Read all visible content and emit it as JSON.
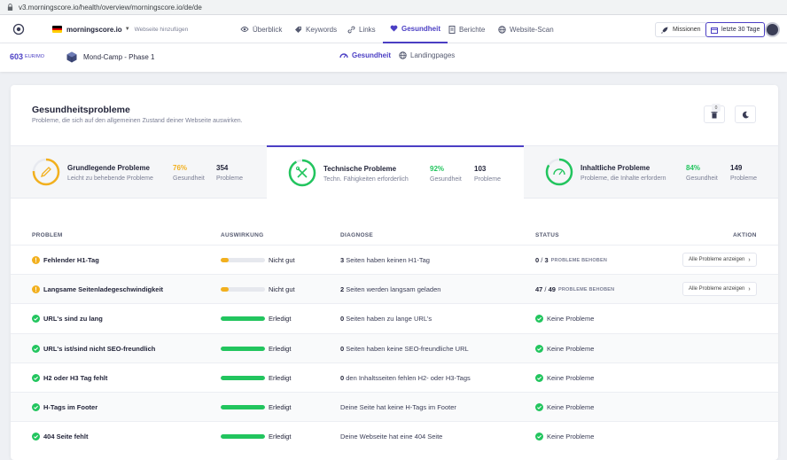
{
  "browser": {
    "url": "v3.morningscore.io/health/overview/morningscore.io/de/de"
  },
  "topnav": {
    "site_name": "morningscore.io",
    "add_site": "Webseite hinzufügen",
    "items": [
      {
        "label": "Überblick",
        "icon": "eye-icon"
      },
      {
        "label": "Keywords",
        "icon": "tag-icon"
      },
      {
        "label": "Links",
        "icon": "link-icon"
      },
      {
        "label": "Gesundheit",
        "icon": "heart-icon"
      },
      {
        "label": "Berichte",
        "icon": "report-icon"
      },
      {
        "label": "Website-Scan",
        "icon": "globe-icon"
      }
    ],
    "missions": "Missionen",
    "date_range": "letzte 30 Tage"
  },
  "subnav": {
    "score_value": "603",
    "score_unit": "EUR/MO",
    "project": "Mond-Camp - Phase 1",
    "items": [
      {
        "label": "Gesundheit",
        "icon": "gauge-icon"
      },
      {
        "label": "Landingpages",
        "icon": "globe-icon"
      }
    ]
  },
  "header": {
    "title": "Gesundheitsprobleme",
    "subtitle": "Probleme, die sich auf den allgemeinen Zustand deiner Webseite auswirken.",
    "trash_badge": "0"
  },
  "categories": [
    {
      "title": "Grundlegende Probleme",
      "desc": "Leicht zu behebende Probleme",
      "pct": "76%",
      "pct_label": "Gesundheit",
      "count": "354",
      "count_label": "Probleme",
      "color": "#f2b01e",
      "level": 0.76
    },
    {
      "title": "Technische Probleme",
      "desc": "Techn. Fähigkeiten erforderlich",
      "pct": "92%",
      "pct_label": "Gesundheit",
      "count": "103",
      "count_label": "Probleme",
      "color": "#22c55e",
      "level": 0.92
    },
    {
      "title": "Inhaltliche Probleme",
      "desc": "Probleme, die Inhalte erfordern",
      "pct": "84%",
      "pct_label": "Gesundheit",
      "count": "149",
      "count_label": "Probleme",
      "color": "#22c55e",
      "level": 0.84
    }
  ],
  "table": {
    "headers": {
      "problem": "PROBLEM",
      "impact": "AUSWIRKUNG",
      "diagnosis": "DIAGNOSE",
      "status": "STATUS",
      "action": "AKTION"
    },
    "rows": [
      {
        "name": "Fehlender H1-Tag",
        "state": "warning",
        "impact": "Nicht gut",
        "progress": 0.18,
        "diag_num": "3",
        "diag_text": " Seiten haben keinen H1-Tag",
        "status_a": "0",
        "status_b": "3",
        "status_suffix": "PROBLEME BEHOBEN",
        "action": "Alle Probleme anzeigen"
      },
      {
        "name": "Langsame Seitenladegeschwindigkeit",
        "state": "warning",
        "impact": "Nicht gut",
        "progress": 0.18,
        "diag_num": "2",
        "diag_text": " Seiten werden langsam geladen",
        "status_a": "47",
        "status_b": "49",
        "status_suffix": "PROBLEME BEHOBEN",
        "action": "Alle Probleme anzeigen"
      },
      {
        "name": "URL's sind zu lang",
        "state": "ok",
        "impact": "Erledigt",
        "progress": 1,
        "diag_num": "0",
        "diag_text": " Seiten haben zu lange URL's",
        "status_ok": "Keine Probleme"
      },
      {
        "name": "URL's ist/sind nicht SEO-freundlich",
        "state": "ok",
        "impact": "Erledigt",
        "progress": 1,
        "diag_num": "0",
        "diag_text": " Seiten haben keine SEO-freundliche URL",
        "status_ok": "Keine Probleme"
      },
      {
        "name": "H2 oder H3 Tag fehlt",
        "state": "ok",
        "impact": "Erledigt",
        "progress": 1,
        "diag_num": "0",
        "diag_text": " den Inhaltsseiten fehlen H2- oder H3-Tags",
        "status_ok": "Keine Probleme"
      },
      {
        "name": "H-Tags im Footer",
        "state": "ok",
        "impact": "Erledigt",
        "progress": 1,
        "diag_num": "",
        "diag_text": "Deine Seite hat keine H-Tags im Footer",
        "status_ok": "Keine Probleme"
      },
      {
        "name": "404 Seite fehlt",
        "state": "ok",
        "impact": "Erledigt",
        "progress": 1,
        "diag_num": "",
        "diag_text": "Deine Webseite hat eine 404 Seite",
        "status_ok": "Keine Probleme"
      }
    ]
  },
  "colors": {
    "accent": "#4b3fc4",
    "warning": "#f2b01e",
    "ok": "#22c55e"
  }
}
